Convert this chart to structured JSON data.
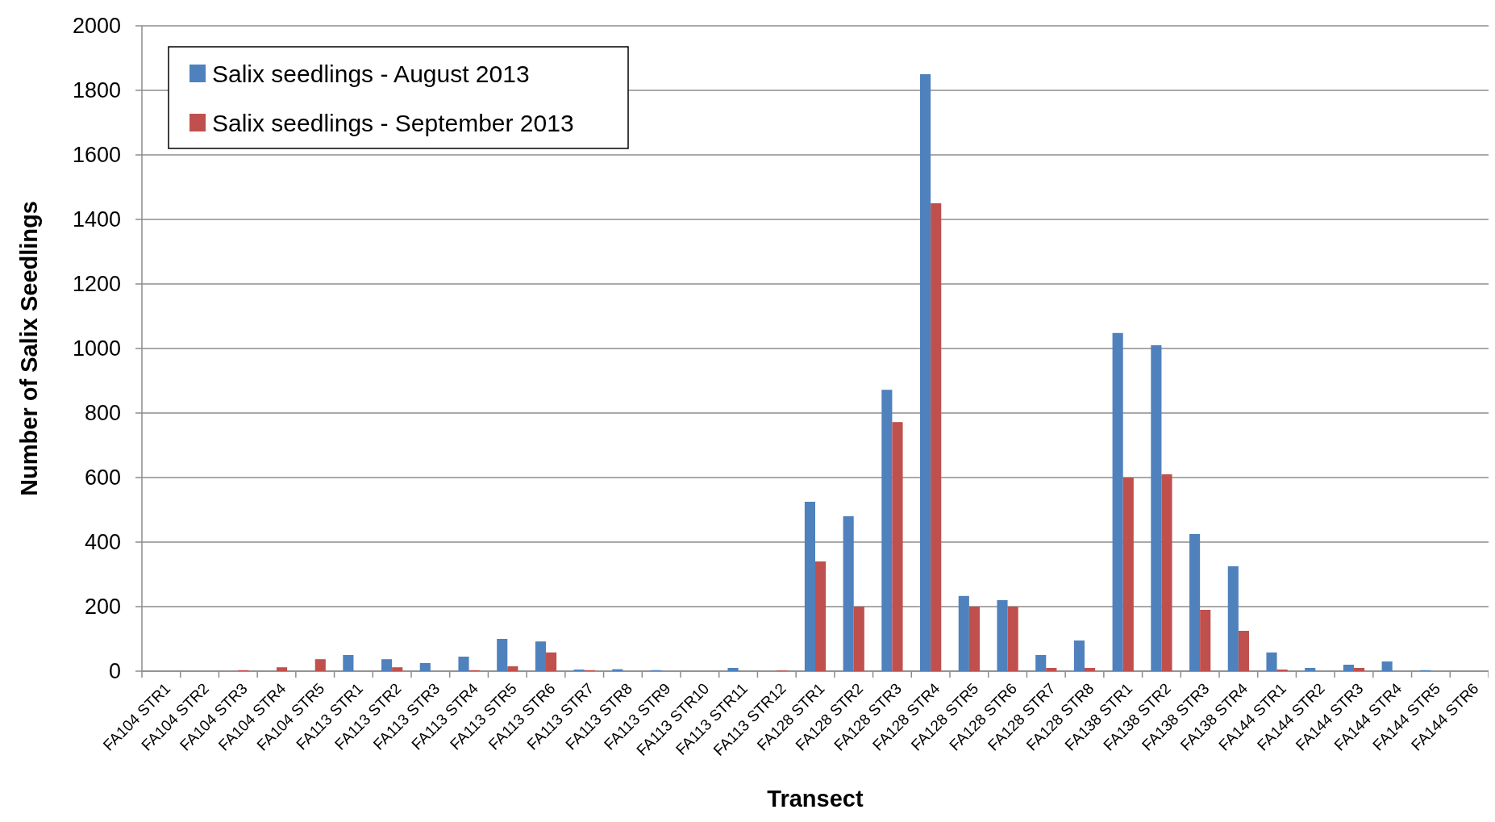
{
  "chart_data": {
    "type": "bar",
    "xlabel": "Transect",
    "ylabel": "Number of Salix Seedlings",
    "categories": [
      "FA104 STR1",
      "FA104 STR2",
      "FA104 STR3",
      "FA104 STR4",
      "FA104 STR5",
      "FA113 STR1",
      "FA113 STR2",
      "FA113 STR3",
      "FA113 STR4",
      "FA113 STR5",
      "FA113 STR6",
      "FA113 STR7",
      "FA113 STR8",
      "FA113 STR9",
      "FA113 STR10",
      "FA113 STR11",
      "FA113 STR12",
      "FA128 STR1",
      "FA128 STR2",
      "FA128 STR3",
      "FA128 STR4",
      "FA128 STR5",
      "FA128 STR6",
      "FA128 STR7",
      "FA128 STR8",
      "FA138 STR1",
      "FA138 STR2",
      "FA138 STR3",
      "FA138 STR4",
      "FA144 STR1",
      "FA144 STR2",
      "FA144 STR3",
      "FA144 STR4",
      "FA144 STR5",
      "FA144 STR6"
    ],
    "series": [
      {
        "name": "Salix seedlings - August 2013",
        "color": "#4f81bd",
        "values": [
          0,
          0,
          0,
          0,
          0,
          50,
          37,
          25,
          45,
          100,
          92,
          5,
          6,
          3,
          0,
          10,
          0,
          525,
          480,
          872,
          1850,
          233,
          220,
          50,
          95,
          1048,
          1010,
          425,
          325,
          58,
          10,
          20,
          30,
          3,
          0
        ]
      },
      {
        "name": "Salix seedlings - September 2013",
        "color": "#c0504d",
        "values": [
          0,
          0,
          3,
          12,
          37,
          0,
          12,
          0,
          3,
          15,
          58,
          3,
          0,
          0,
          0,
          0,
          2,
          340,
          200,
          772,
          1450,
          200,
          200,
          10,
          10,
          600,
          610,
          190,
          125,
          5,
          0,
          10,
          0,
          0,
          0
        ]
      }
    ],
    "ylim": [
      0,
      2000
    ],
    "yticks": [
      0,
      200,
      400,
      600,
      800,
      1000,
      1200,
      1400,
      1600,
      1800,
      2000
    ],
    "grid": "y",
    "legend": "top left"
  }
}
